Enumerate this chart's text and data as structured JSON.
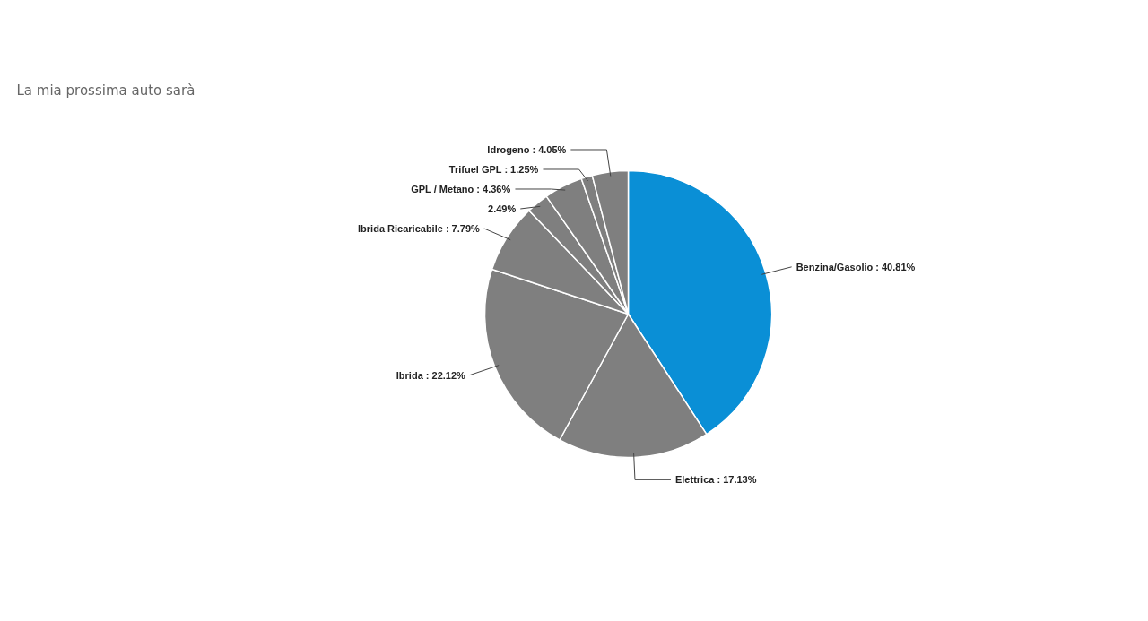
{
  "chart_data": {
    "type": "pie",
    "title": "La mia prossima auto sarà",
    "categories": [
      "Benzina/Gasolio",
      "Elettrica",
      "Ibrida",
      "Ibrida Ricaricabile",
      null,
      "GPL / Metano",
      "Trifuel GPL",
      "Idrogeno"
    ],
    "values": [
      40.81,
      17.13,
      22.12,
      7.79,
      2.49,
      4.36,
      1.25,
      4.05
    ],
    "value_labels": [
      "40.81%",
      "17.13%",
      "22.12%",
      "7.79%",
      "2.49%",
      "4.36%",
      "1.25%",
      "4.05%"
    ],
    "colors": [
      "#0a8fd6",
      "#7f7f7f",
      "#7f7f7f",
      "#7f7f7f",
      "#7f7f7f",
      "#7f7f7f",
      "#7f7f7f",
      "#7f7f7f"
    ]
  }
}
